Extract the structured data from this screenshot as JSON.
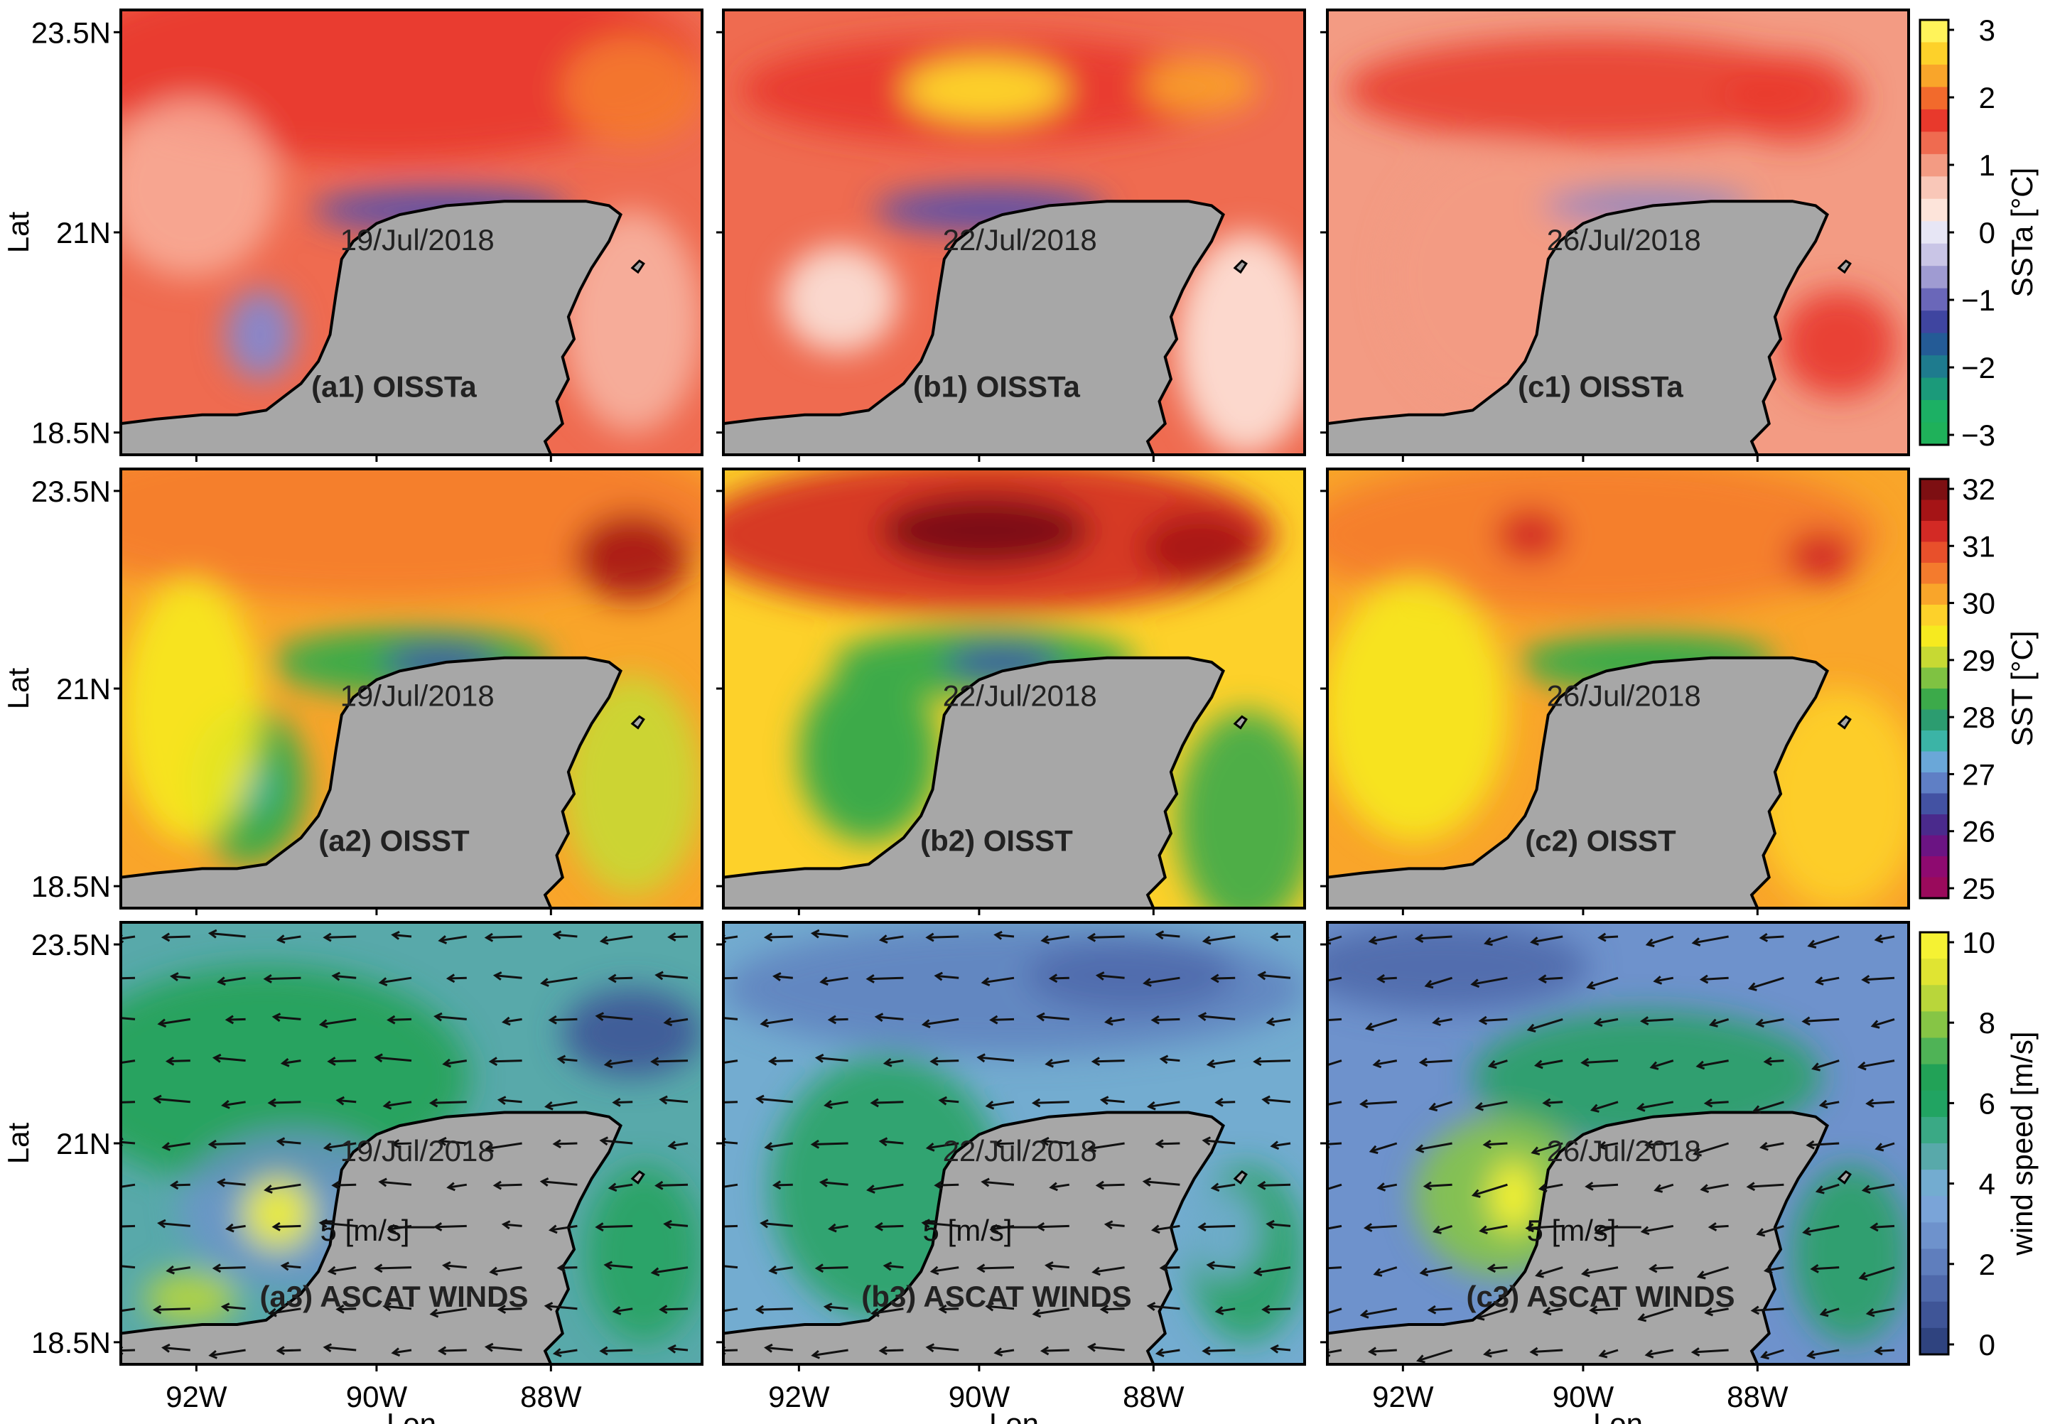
{
  "figure": {
    "axis_labels": {
      "y": "Lat",
      "x": "Lon"
    },
    "lat_ticks": [
      "23.5N",
      "21N",
      "18.5N"
    ],
    "lon_ticks": [
      "92W",
      "90W",
      "88W"
    ],
    "columns": [
      {
        "date": "19/Jul/2018",
        "panel_ids": [
          "(a1) OISSTa",
          "(a2) OISST",
          "(a3) ASCAT WINDS"
        ]
      },
      {
        "date": "22/Jul/2018",
        "panel_ids": [
          "(b1) OISSTa",
          "(b2) OISST",
          "(b3) ASCAT WINDS"
        ]
      },
      {
        "date": "26/Jul/2018",
        "panel_ids": [
          "(c1) OISSTa",
          "(c2) OISST",
          "(c3) ASCAT WINDS"
        ]
      }
    ],
    "rows": [
      {
        "variable": "SST anomaly",
        "colorbar": {
          "label": "SSTa [°C]",
          "ticks": [
            "3",
            "2",
            "1",
            "0",
            "−1",
            "−2",
            "−3"
          ],
          "colors": [
            "#fff35a",
            "#fdd12a",
            "#f9a52a",
            "#f26a2c",
            "#e8392c",
            "#ef6b50",
            "#f39b83",
            "#f9c7b8",
            "#fde4da",
            "#e7e6f5",
            "#c9c5e6",
            "#9f9bd2",
            "#6a67b9",
            "#3f45a0",
            "#245b96",
            "#1e7b8e",
            "#1b9a7a",
            "#1cb064",
            "#1fb15a"
          ]
        }
      },
      {
        "variable": "SST",
        "colorbar": {
          "label": "SST [°C]",
          "ticks": [
            "32",
            "31",
            "30",
            "29",
            "28",
            "27",
            "26",
            "25"
          ],
          "colors": [
            "#7d0f12",
            "#a51416",
            "#d32a25",
            "#e8502b",
            "#f47b2d",
            "#f9a52a",
            "#fdd12a",
            "#f6ea1f",
            "#c7d933",
            "#7fc242",
            "#3caa4a",
            "#2c9c70",
            "#3bb4a6",
            "#6aa7d8",
            "#5f7fc5",
            "#4352a3",
            "#4a2a8c",
            "#6b1483",
            "#8e0a70",
            "#9a0a5c"
          ]
        }
      },
      {
        "variable": "wind speed",
        "colorbar": {
          "label": "wind speed [m/s]",
          "ticks": [
            "10",
            "8",
            "6",
            "4",
            "2",
            "0"
          ],
          "colors": [
            "#f5f233",
            "#e0e432",
            "#b9d63a",
            "#86c545",
            "#4fb356",
            "#22a257",
            "#21a462",
            "#3aa985",
            "#58a9aa",
            "#73acd0",
            "#7aa4d8",
            "#6e92cc",
            "#5f7ebd",
            "#4f69ab",
            "#3f5597",
            "#2f437f"
          ]
        },
        "scale_label": "5 [m/s]"
      }
    ]
  }
}
